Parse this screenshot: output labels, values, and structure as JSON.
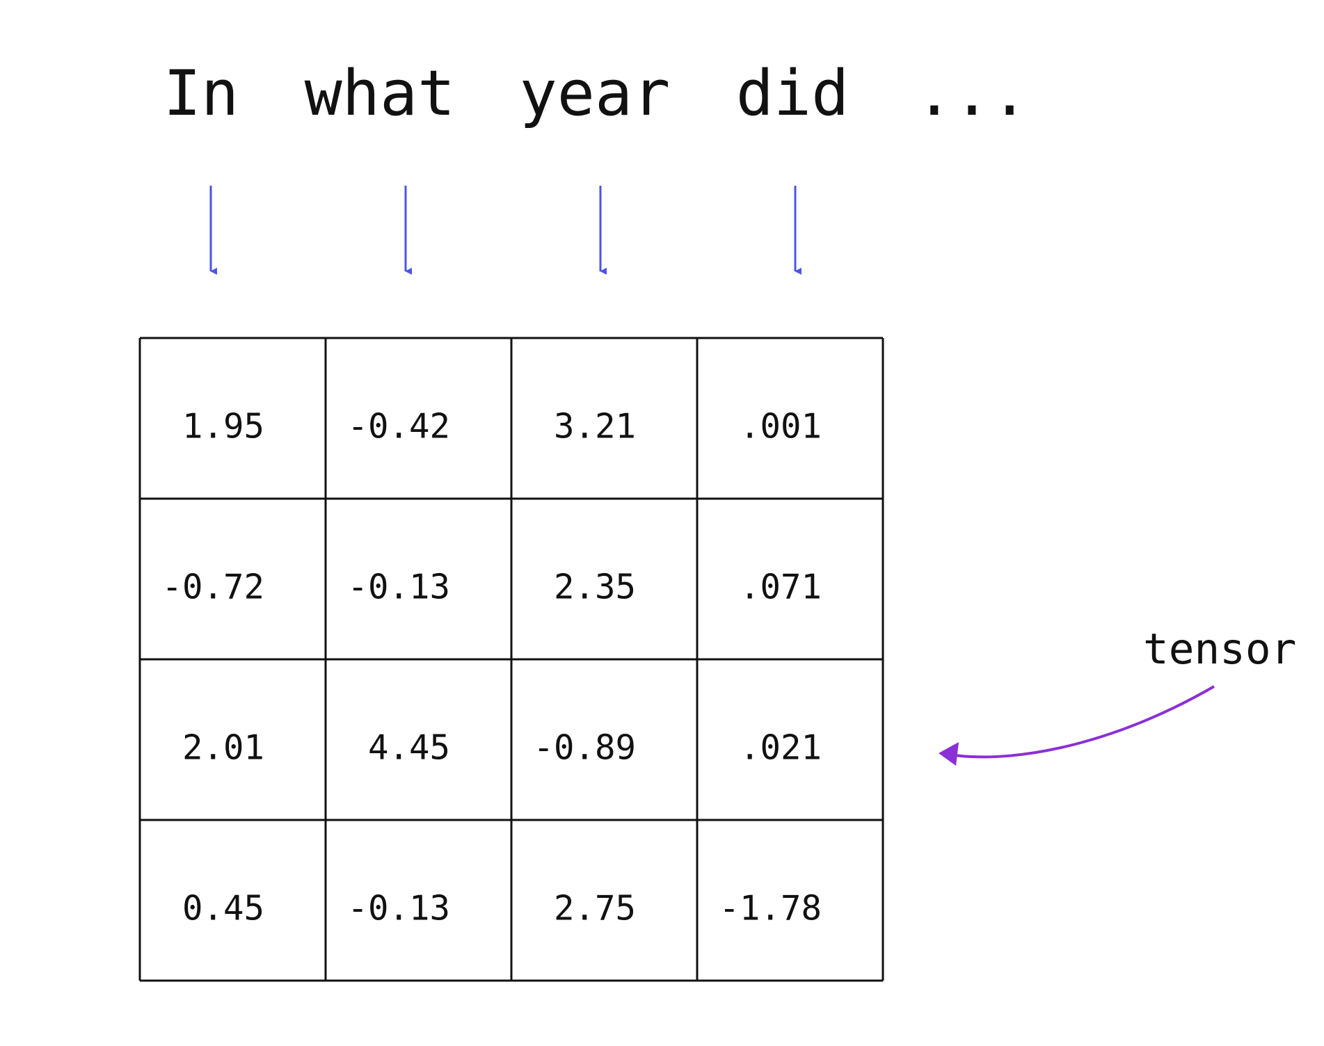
{
  "tokens": [
    "In",
    "what",
    "year",
    "did",
    "..."
  ],
  "table": {
    "rows": [
      [
        "1.95",
        "-0.42",
        "3.21",
        ".001"
      ],
      [
        "-0.72",
        "-0.13",
        "2.35",
        ".071"
      ],
      [
        "2.01",
        "4.45",
        "-0.89",
        ".021"
      ],
      [
        "0.45",
        "-0.13",
        "2.75",
        "-1.78"
      ]
    ]
  },
  "label": "tensor"
}
